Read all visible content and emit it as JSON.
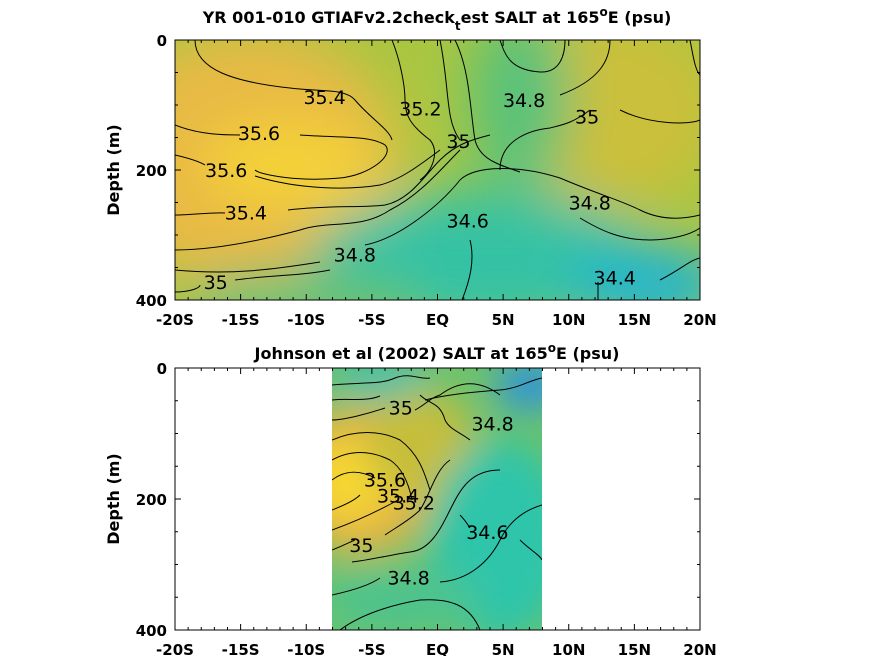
{
  "figure": {
    "top_title_main": "YR 001-010 GTIAFv2.2check",
    "top_title_sub": "t",
    "top_title_rest": "est SALT at 165",
    "bottom_title": "Johnson et al (2002) SALT at 165",
    "title_sup": "o",
    "title_tail": "E (psu)"
  },
  "colors": {
    "high": "#f7d23c",
    "mid_high": "#e9b443",
    "mid": "#b9c23b",
    "low_mid": "#6fc26a",
    "low": "#33c3a3",
    "lowest": "#2a9ee0"
  },
  "chart_data": [
    {
      "type": "heatmap",
      "subtype": "contour",
      "panel": "model",
      "ylabel": "Depth (m)",
      "x_tick_labels": [
        "-20S",
        "-15S",
        "-10S",
        "-5S",
        "EQ",
        "5N",
        "10N",
        "15N",
        "20N"
      ],
      "x_ticks": [
        -20,
        -15,
        -10,
        -5,
        0,
        5,
        10,
        15,
        20
      ],
      "xlim": [
        -20,
        20
      ],
      "y_tick_labels": [
        "0",
        "200",
        "400"
      ],
      "y_ticks": [
        0,
        200,
        400
      ],
      "ylim": [
        0,
        400
      ],
      "y_reversed": true,
      "contour_labels": [
        {
          "text": "35.4",
          "x": -8.6,
          "y": 88
        },
        {
          "text": "35.2",
          "x": -1.3,
          "y": 105
        },
        {
          "text": "34.8",
          "x": 6.6,
          "y": 92
        },
        {
          "text": "35",
          "x": 11.4,
          "y": 118
        },
        {
          "text": "35.6",
          "x": -13.6,
          "y": 143
        },
        {
          "text": "35",
          "x": 1.6,
          "y": 155
        },
        {
          "text": "35.6",
          "x": -16.1,
          "y": 200
        },
        {
          "text": "34.8",
          "x": 11.6,
          "y": 250
        },
        {
          "text": "35.4",
          "x": -14.6,
          "y": 265
        },
        {
          "text": "34.6",
          "x": 2.3,
          "y": 278
        },
        {
          "text": "34.8",
          "x": -6.3,
          "y": 330
        },
        {
          "text": "35",
          "x": -16.9,
          "y": 372
        },
        {
          "text": "34.4",
          "x": 13.5,
          "y": 365
        }
      ]
    },
    {
      "type": "heatmap",
      "subtype": "contour",
      "panel": "observed",
      "ylabel": "Depth (m)",
      "x_tick_labels": [
        "-20S",
        "-15S",
        "-10S",
        "-5S",
        "EQ",
        "5N",
        "10N",
        "15N",
        "20N"
      ],
      "x_ticks": [
        -20,
        -15,
        -10,
        -5,
        0,
        5,
        10,
        15,
        20
      ],
      "xlim": [
        -20,
        20
      ],
      "data_xlim": [
        -8,
        8
      ],
      "y_tick_labels": [
        "0",
        "200",
        "400"
      ],
      "y_ticks": [
        0,
        200,
        400
      ],
      "ylim": [
        0,
        400
      ],
      "y_reversed": true,
      "contour_labels": [
        {
          "text": "35",
          "x": -2.8,
          "y": 60
        },
        {
          "text": "34.8",
          "x": 4.2,
          "y": 85
        },
        {
          "text": "35.6",
          "x": -4.0,
          "y": 170
        },
        {
          "text": "35.4",
          "x": -3.0,
          "y": 195
        },
        {
          "text": "35.2",
          "x": -1.8,
          "y": 205
        },
        {
          "text": "34.6",
          "x": 3.8,
          "y": 250
        },
        {
          "text": "35",
          "x": -5.8,
          "y": 270
        },
        {
          "text": "34.8",
          "x": -2.2,
          "y": 320
        }
      ]
    }
  ]
}
